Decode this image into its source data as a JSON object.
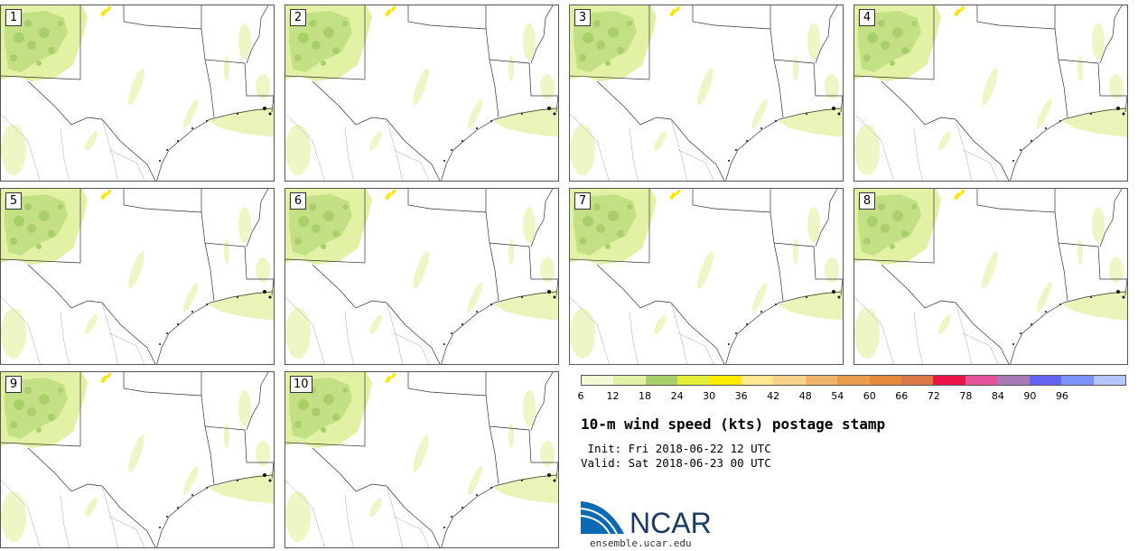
{
  "panels": [
    {
      "label": "1"
    },
    {
      "label": "2"
    },
    {
      "label": "3"
    },
    {
      "label": "4"
    },
    {
      "label": "5"
    },
    {
      "label": "6"
    },
    {
      "label": "7"
    },
    {
      "label": "8"
    },
    {
      "label": "9"
    },
    {
      "label": "10"
    }
  ],
  "colorbar": {
    "ticks": [
      "6",
      "12",
      "18",
      "24",
      "30",
      "36",
      "42",
      "48",
      "54",
      "60",
      "66",
      "72",
      "78",
      "84",
      "90",
      "96"
    ],
    "colors": [
      "#f3f8d6",
      "#e2f2a4",
      "#a9cf6a",
      "#e3ef3a",
      "#ffeb00",
      "#ffe98e",
      "#f7d28a",
      "#f0b468",
      "#ea9b4c",
      "#e48a3c",
      "#dc7848",
      "#ea1448",
      "#e4529a",
      "#a77ab4",
      "#6464f0",
      "#7c92f8",
      "#b4c6fc"
    ]
  },
  "title": "10-m wind speed (kts) postage stamp",
  "init": " Init: Fri 2018-06-22 12 UTC",
  "valid": "Valid: Sat 2018-06-23 00 UTC",
  "logo": {
    "text": "NCAR",
    "url": "ensemble.ucar.edu",
    "brand_color": "#0a6ab4"
  }
}
